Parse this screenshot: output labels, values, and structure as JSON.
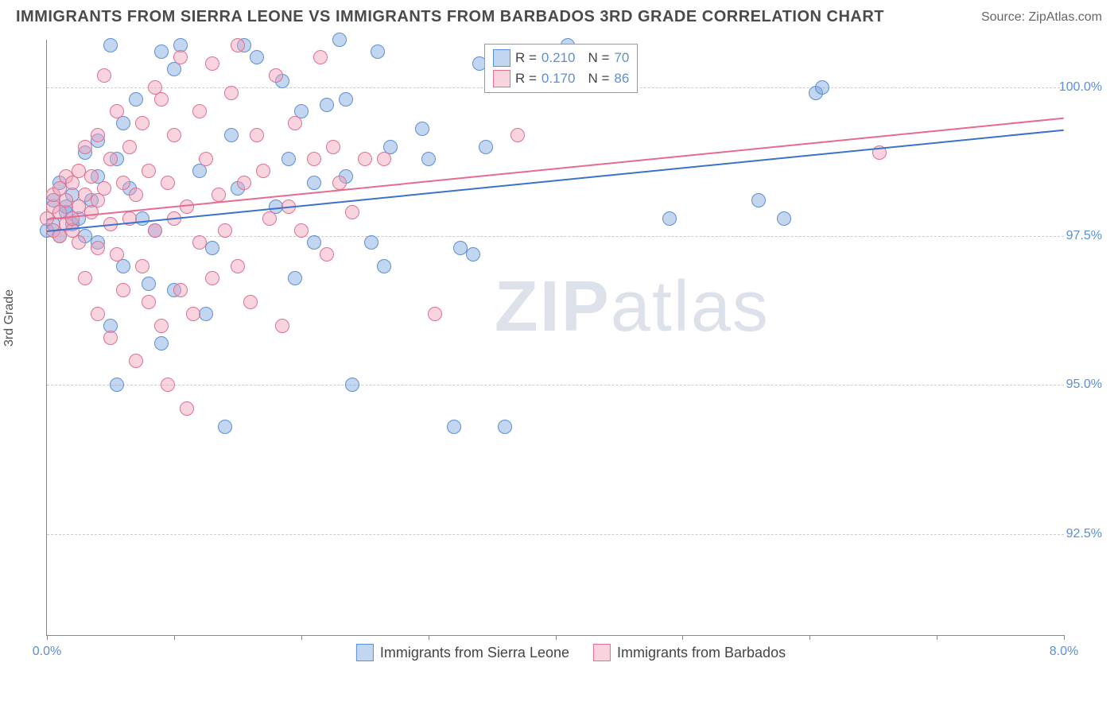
{
  "header": {
    "title": "IMMIGRANTS FROM SIERRA LEONE VS IMMIGRANTS FROM BARBADOS 3RD GRADE CORRELATION CHART",
    "source": "Source: ZipAtlas.com"
  },
  "chart": {
    "type": "scatter",
    "yaxis_label": "3rd Grade",
    "watermark": "ZIPatlas",
    "xlim": [
      0.0,
      8.0
    ],
    "ylim": [
      90.8,
      100.8
    ],
    "xtick_positions": [
      0.0,
      1.0,
      2.0,
      3.0,
      4.0,
      5.0,
      6.0,
      7.0,
      8.0
    ],
    "xtick_labels": {
      "first": "0.0%",
      "last": "8.0%"
    },
    "ytick_positions": [
      92.5,
      95.0,
      97.5,
      100.0
    ],
    "ytick_labels": [
      "92.5%",
      "95.0%",
      "97.5%",
      "100.0%"
    ],
    "grid_color": "#cccccc",
    "axis_color": "#888888",
    "background_color": "#ffffff",
    "tick_label_color": "#5b8fd6",
    "series": [
      {
        "name": "Immigrants from Sierra Leone",
        "fill": "rgba(120,164,222,0.45)",
        "stroke": "#5b8fd6",
        "line_color": "#3a73c9",
        "marker_radius": 9,
        "stats": {
          "R": "0.210",
          "N": "70"
        },
        "trend": {
          "x0": 0.0,
          "y0": 97.6,
          "x1": 8.0,
          "y1": 99.3
        },
        "points": [
          [
            0.0,
            97.6
          ],
          [
            0.05,
            97.7
          ],
          [
            0.05,
            98.1
          ],
          [
            0.1,
            98.4
          ],
          [
            0.1,
            97.5
          ],
          [
            0.15,
            97.9
          ],
          [
            0.15,
            98.0
          ],
          [
            0.2,
            97.7
          ],
          [
            0.2,
            98.2
          ],
          [
            0.25,
            97.8
          ],
          [
            0.3,
            97.5
          ],
          [
            0.3,
            98.9
          ],
          [
            0.35,
            98.1
          ],
          [
            0.4,
            98.5
          ],
          [
            0.4,
            99.1
          ],
          [
            0.4,
            97.4
          ],
          [
            0.5,
            96.0
          ],
          [
            0.5,
            100.7
          ],
          [
            0.55,
            95.0
          ],
          [
            0.55,
            98.8
          ],
          [
            0.6,
            97.0
          ],
          [
            0.6,
            99.4
          ],
          [
            0.65,
            98.3
          ],
          [
            0.7,
            99.8
          ],
          [
            0.75,
            97.8
          ],
          [
            0.8,
            96.7
          ],
          [
            0.85,
            97.6
          ],
          [
            0.9,
            95.7
          ],
          [
            0.9,
            100.6
          ],
          [
            1.0,
            96.6
          ],
          [
            1.0,
            100.3
          ],
          [
            1.05,
            100.7
          ],
          [
            1.2,
            98.6
          ],
          [
            1.25,
            96.2
          ],
          [
            1.3,
            97.3
          ],
          [
            1.4,
            94.3
          ],
          [
            1.45,
            99.2
          ],
          [
            1.5,
            98.3
          ],
          [
            1.55,
            100.7
          ],
          [
            1.65,
            100.5
          ],
          [
            1.8,
            98.0
          ],
          [
            1.85,
            100.1
          ],
          [
            1.9,
            98.8
          ],
          [
            1.95,
            96.8
          ],
          [
            2.0,
            99.6
          ],
          [
            2.1,
            97.4
          ],
          [
            2.1,
            98.4
          ],
          [
            2.2,
            99.7
          ],
          [
            2.3,
            100.8
          ],
          [
            2.35,
            99.8
          ],
          [
            2.35,
            98.5
          ],
          [
            2.4,
            95.0
          ],
          [
            2.55,
            97.4
          ],
          [
            2.6,
            100.6
          ],
          [
            2.65,
            97.0
          ],
          [
            2.7,
            99.0
          ],
          [
            2.95,
            99.3
          ],
          [
            3.0,
            98.8
          ],
          [
            3.2,
            94.3
          ],
          [
            3.25,
            97.3
          ],
          [
            3.35,
            97.2
          ],
          [
            3.4,
            100.4
          ],
          [
            3.45,
            99.0
          ],
          [
            3.6,
            94.3
          ],
          [
            4.1,
            100.7
          ],
          [
            4.9,
            97.8
          ],
          [
            5.6,
            98.1
          ],
          [
            5.8,
            97.8
          ],
          [
            6.05,
            99.9
          ],
          [
            6.1,
            100.0
          ]
        ]
      },
      {
        "name": "Immigrants from Barbados",
        "fill": "rgba(240,160,185,0.45)",
        "stroke": "#e07090",
        "line_color": "#e86a8f",
        "marker_radius": 9,
        "stats": {
          "R": "0.170",
          "N": "86"
        },
        "trend": {
          "x0": 0.0,
          "y0": 97.8,
          "x1": 8.0,
          "y1": 99.5
        },
        "points": [
          [
            0.0,
            97.8
          ],
          [
            0.05,
            97.6
          ],
          [
            0.05,
            98.0
          ],
          [
            0.05,
            98.2
          ],
          [
            0.1,
            97.5
          ],
          [
            0.1,
            97.9
          ],
          [
            0.1,
            98.3
          ],
          [
            0.15,
            97.7
          ],
          [
            0.15,
            98.1
          ],
          [
            0.15,
            98.5
          ],
          [
            0.2,
            97.6
          ],
          [
            0.2,
            97.8
          ],
          [
            0.2,
            98.4
          ],
          [
            0.25,
            98.0
          ],
          [
            0.25,
            98.6
          ],
          [
            0.25,
            97.4
          ],
          [
            0.3,
            99.0
          ],
          [
            0.3,
            98.2
          ],
          [
            0.3,
            96.8
          ],
          [
            0.35,
            97.9
          ],
          [
            0.35,
            98.5
          ],
          [
            0.4,
            98.1
          ],
          [
            0.4,
            97.3
          ],
          [
            0.4,
            99.2
          ],
          [
            0.4,
            96.2
          ],
          [
            0.45,
            98.3
          ],
          [
            0.45,
            100.2
          ],
          [
            0.5,
            97.7
          ],
          [
            0.5,
            95.8
          ],
          [
            0.5,
            98.8
          ],
          [
            0.55,
            99.6
          ],
          [
            0.55,
            97.2
          ],
          [
            0.6,
            98.4
          ],
          [
            0.6,
            96.6
          ],
          [
            0.65,
            99.0
          ],
          [
            0.65,
            97.8
          ],
          [
            0.7,
            98.2
          ],
          [
            0.7,
            95.4
          ],
          [
            0.75,
            97.0
          ],
          [
            0.75,
            99.4
          ],
          [
            0.8,
            98.6
          ],
          [
            0.8,
            96.4
          ],
          [
            0.85,
            97.6
          ],
          [
            0.85,
            100.0
          ],
          [
            0.9,
            99.8
          ],
          [
            0.9,
            96.0
          ],
          [
            0.95,
            95.0
          ],
          [
            0.95,
            98.4
          ],
          [
            1.0,
            97.8
          ],
          [
            1.0,
            99.2
          ],
          [
            1.05,
            96.6
          ],
          [
            1.05,
            100.5
          ],
          [
            1.1,
            98.0
          ],
          [
            1.1,
            94.6
          ],
          [
            1.15,
            96.2
          ],
          [
            1.2,
            99.6
          ],
          [
            1.2,
            97.4
          ],
          [
            1.25,
            98.8
          ],
          [
            1.3,
            100.4
          ],
          [
            1.3,
            96.8
          ],
          [
            1.35,
            98.2
          ],
          [
            1.4,
            97.6
          ],
          [
            1.45,
            99.9
          ],
          [
            1.5,
            100.7
          ],
          [
            1.5,
            97.0
          ],
          [
            1.55,
            98.4
          ],
          [
            1.6,
            96.4
          ],
          [
            1.65,
            99.2
          ],
          [
            1.7,
            98.6
          ],
          [
            1.75,
            97.8
          ],
          [
            1.8,
            100.2
          ],
          [
            1.85,
            96.0
          ],
          [
            1.9,
            98.0
          ],
          [
            1.95,
            99.4
          ],
          [
            2.0,
            97.6
          ],
          [
            2.1,
            98.8
          ],
          [
            2.15,
            100.5
          ],
          [
            2.2,
            97.2
          ],
          [
            2.25,
            99.0
          ],
          [
            2.3,
            98.4
          ],
          [
            2.4,
            97.9
          ],
          [
            2.5,
            98.8
          ],
          [
            2.65,
            98.8
          ],
          [
            3.05,
            96.2
          ],
          [
            3.7,
            99.2
          ],
          [
            6.55,
            98.9
          ]
        ]
      }
    ],
    "bottom_legend": [
      {
        "label": "Immigrants from Sierra Leone",
        "fill": "rgba(120,164,222,0.45)",
        "stroke": "#5b8fd6"
      },
      {
        "label": "Immigrants from Barbados",
        "fill": "rgba(240,160,185,0.45)",
        "stroke": "#e07090"
      }
    ]
  }
}
